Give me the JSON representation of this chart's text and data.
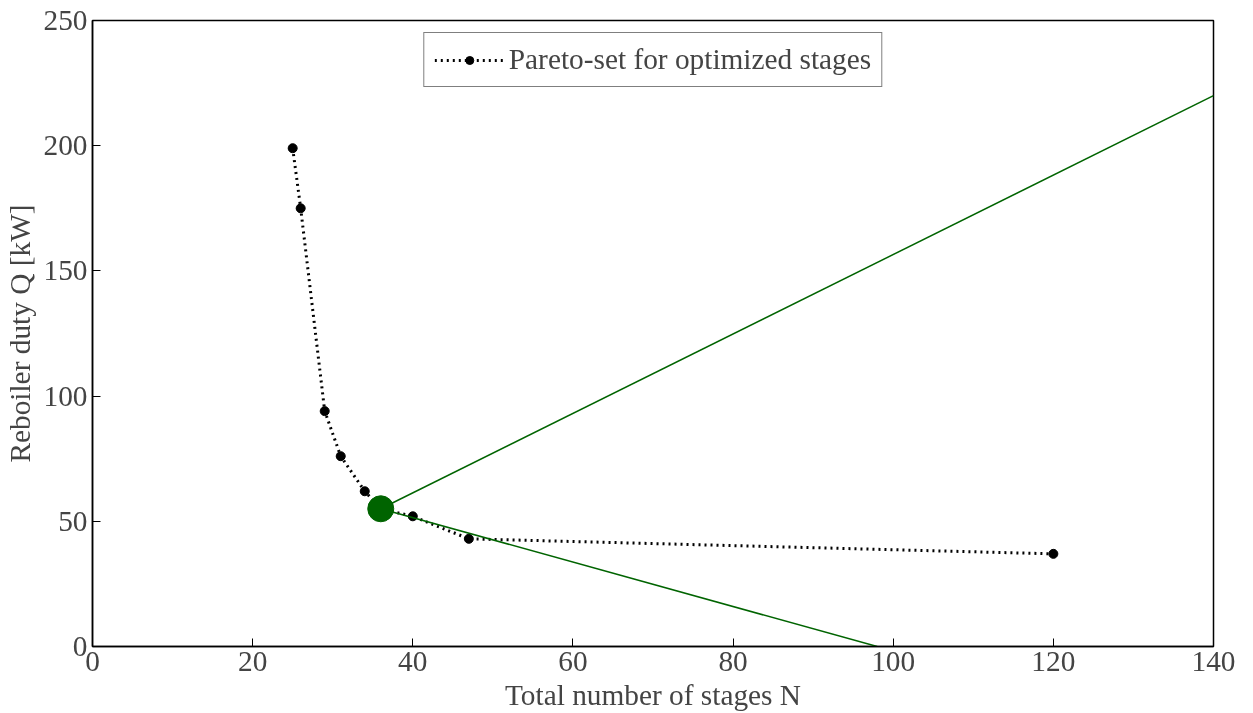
{
  "chart_data": {
    "type": "line",
    "xlabel": "Total number of stages N",
    "ylabel": "Reboiler duty Q [kW]",
    "xlim": [
      0,
      140
    ],
    "ylim": [
      0,
      250
    ],
    "xticks": [
      0,
      20,
      40,
      60,
      80,
      100,
      120,
      140
    ],
    "yticks": [
      0,
      50,
      100,
      150,
      200,
      250
    ],
    "grid": false,
    "legend": "top",
    "series": [
      {
        "name": "Pareto-set for optimized stages",
        "color": "#000000",
        "marker": "circle",
        "line_style": "dotted",
        "x": [
          25,
          26,
          29,
          31,
          34,
          36,
          40,
          47,
          120
        ],
        "values": [
          199,
          175,
          94,
          76,
          62,
          55,
          52,
          43,
          37
        ]
      },
      {
        "color": "#006400",
        "marker": "none",
        "line_style": "solid",
        "x": [
          36,
          140
        ],
        "values": [
          55,
          220
        ]
      },
      {
        "color": "#006400",
        "marker": "none",
        "line_style": "solid",
        "x": [
          36,
          98
        ],
        "values": [
          55,
          0
        ]
      },
      {
        "color": "#006400",
        "type": "scatter",
        "marker": "circle",
        "x": [
          36
        ],
        "values": [
          55
        ]
      }
    ]
  }
}
